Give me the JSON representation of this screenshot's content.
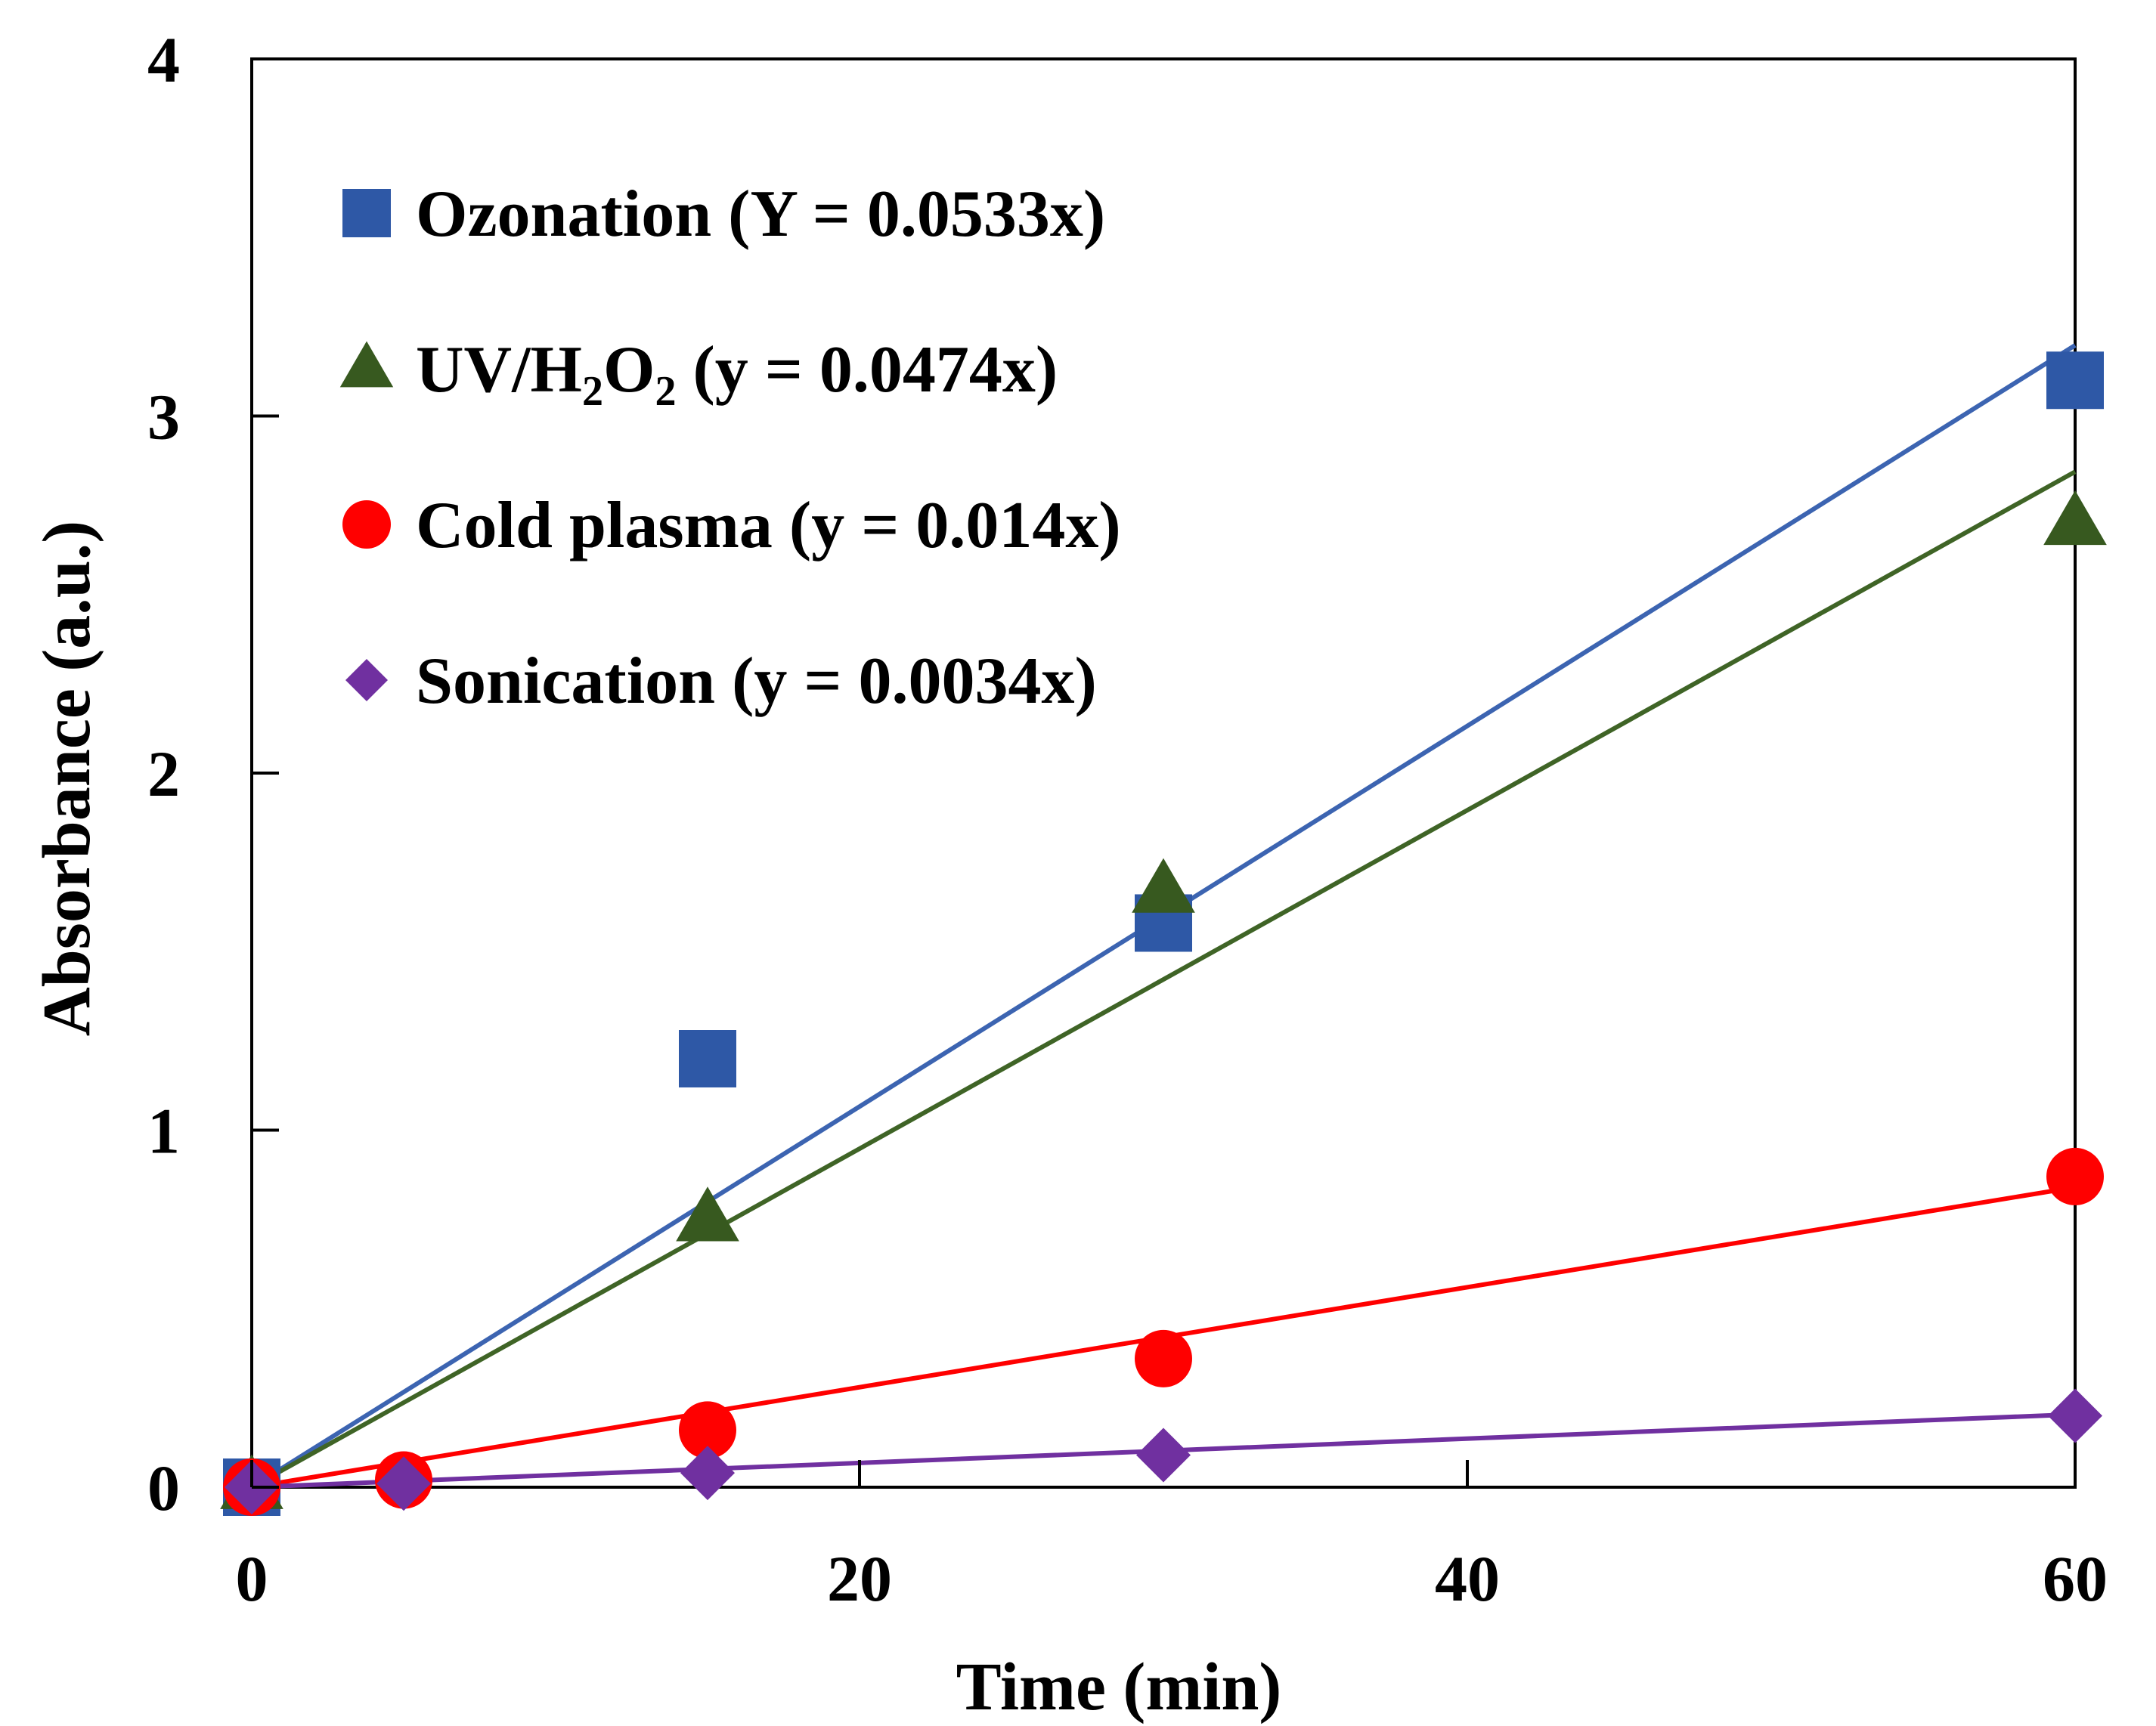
{
  "chart_data": {
    "type": "scatter",
    "title": "",
    "xlabel": "Time (min)",
    "ylabel": "Absorbance (a.u.)",
    "xlim": [
      0,
      60
    ],
    "ylim": [
      0,
      4
    ],
    "xticks": [
      0,
      20,
      40,
      60
    ],
    "yticks": [
      0,
      1,
      2,
      3,
      4
    ],
    "xtick_labels": [
      "0",
      "20",
      "40",
      "60"
    ],
    "ytick_labels": [
      "0",
      "1",
      "2",
      "3",
      "4"
    ],
    "grid": false,
    "legend_position": "top-left",
    "series": [
      {
        "name": "Ozonation",
        "label_pre": "Ozonation (Y = 0.0533x)",
        "marker": "square",
        "color": "#2E58A6",
        "line_color": "#3C64B1",
        "slope": 0.0533,
        "x": [
          0,
          15,
          30,
          60
        ],
        "y": [
          0,
          1.2,
          1.58,
          3.1
        ]
      },
      {
        "name": "UV/H2O2",
        "label_pre": "UV/H",
        "label_sub1": "2",
        "label_mid": "O",
        "label_sub2": "2",
        "label_post": " (y = 0.0474x)",
        "marker": "triangle",
        "color": "#37591F",
        "line_color": "#3F6426",
        "slope": 0.0474,
        "x": [
          0,
          15,
          30,
          60
        ],
        "y": [
          0,
          0.75,
          1.67,
          2.7
        ]
      },
      {
        "name": "Cold plasma",
        "label_pre": "Cold plasma (y = 0.014x)",
        "marker": "circle",
        "color": "#FF0000",
        "line_color": "#FF0000",
        "slope": 0.014,
        "x": [
          0,
          5,
          15,
          30,
          60
        ],
        "y": [
          0,
          0.02,
          0.16,
          0.36,
          0.87
        ]
      },
      {
        "name": "Sonication",
        "label_pre": "Sonication (y = 0.0034x)",
        "marker": "diamond",
        "color": "#7030A0",
        "line_color": "#7030A0",
        "slope": 0.0034,
        "x": [
          0,
          5,
          15,
          30,
          60
        ],
        "y": [
          0,
          0.01,
          0.04,
          0.09,
          0.2
        ]
      }
    ]
  }
}
